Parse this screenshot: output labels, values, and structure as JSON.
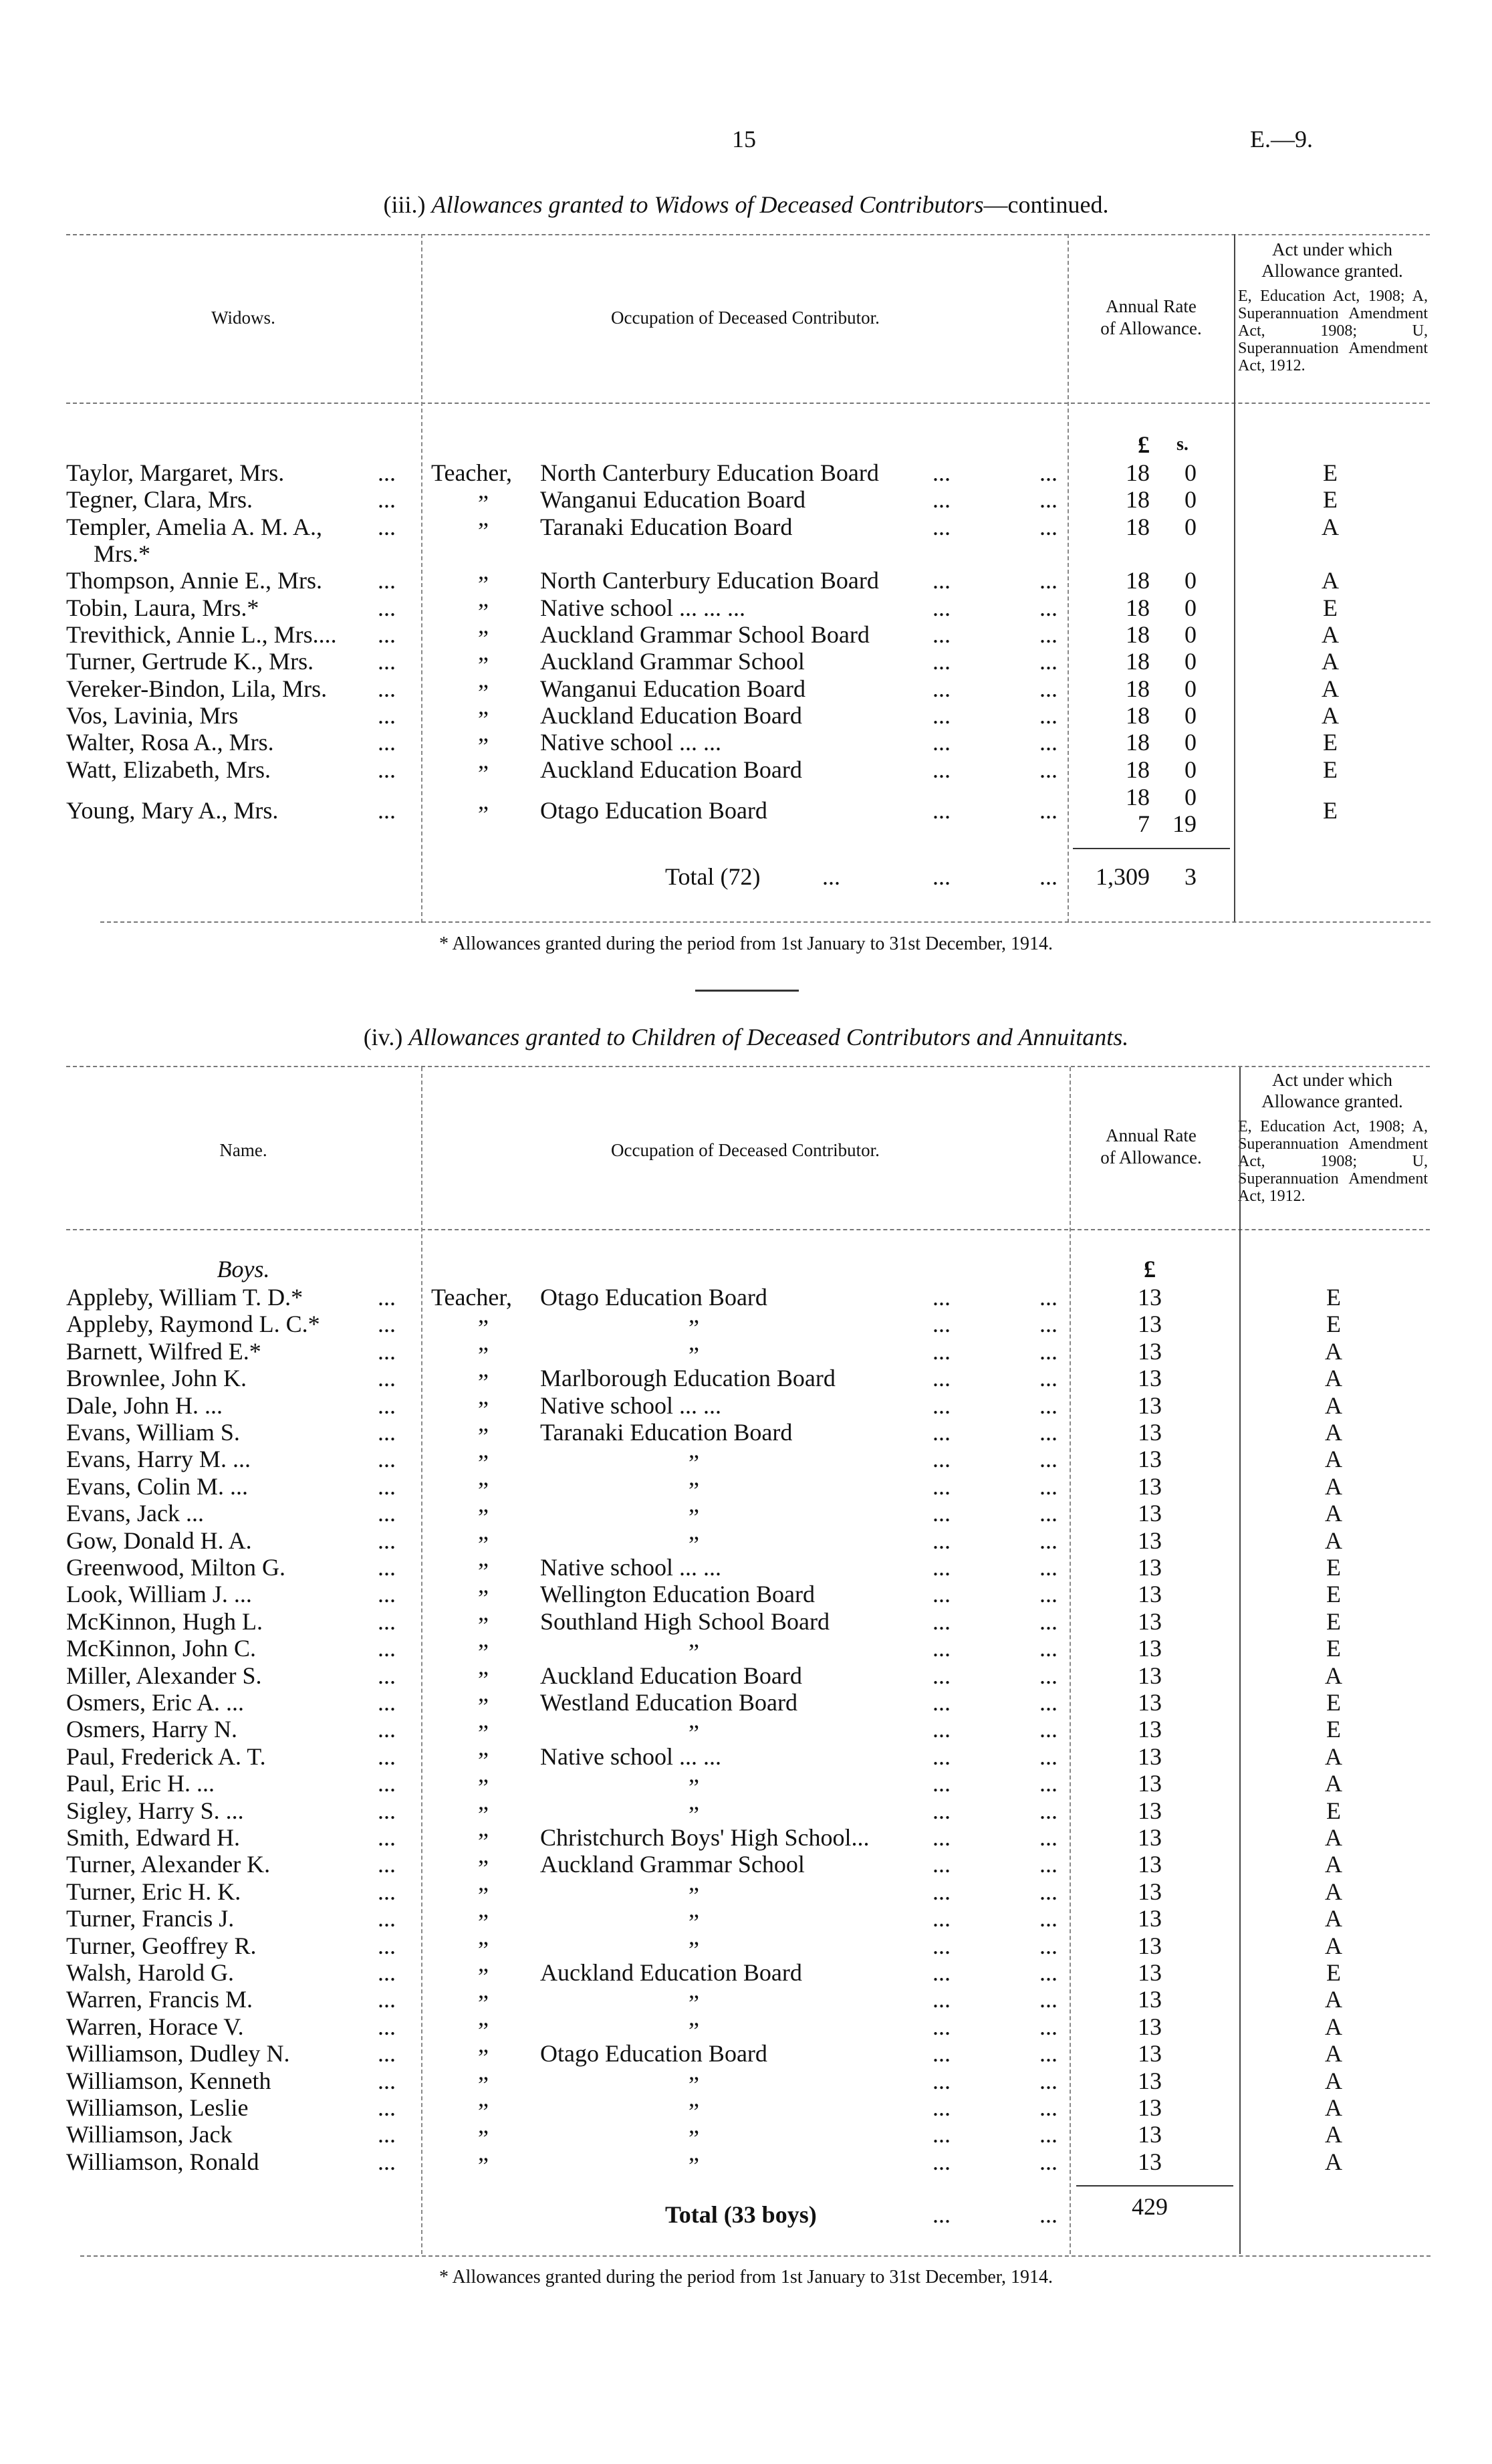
{
  "page": {
    "number": "15",
    "code": "E.—9."
  },
  "leader": "...",
  "ditto_mark": "”",
  "footnote": "* Allowances granted during the period from 1st January to 31st December, 1914.",
  "widows": {
    "title_prefix": "(iii.)",
    "title_italic": "Allowances granted to Widows of Deceased Contributors",
    "title_suffix": "—continued.",
    "headers": {
      "name": "Widows.",
      "occupation": "Occupation of Deceased Contributor.",
      "rate_1": "Annual Rate",
      "rate_2": "of Allowance.",
      "act_1": "Act under which",
      "act_2": "Allowance granted.",
      "act_detail": "E, Education Act, 1908; A, Superannuation Amendment Act, 1908; U, Superannuation Amendment Act, 1912."
    },
    "unit_pounds": "£",
    "unit_shillings": "s.",
    "rows": [
      {
        "name": "Taylor, Margaret, Mrs.",
        "prefix": "Teacher,",
        "occupation": "North Canterbury Education Board",
        "pounds": "18",
        "shillings": "0",
        "act": "E"
      },
      {
        "name": "Tegner, Clara, Mrs.",
        "prefix": "”",
        "occupation": "Wanganui Education Board",
        "pounds": "18",
        "shillings": "0",
        "act": "E"
      },
      {
        "name": "Templer, Amelia A. M. A.,",
        "name_cont": "Mrs.*",
        "prefix": "”",
        "occupation": "Taranaki Education Board",
        "pounds": "18",
        "shillings": "0",
        "act": "A"
      },
      {
        "name": "Thompson, Annie E., Mrs.",
        "prefix": "”",
        "occupation": "North Canterbury Education Board",
        "pounds": "18",
        "shillings": "0",
        "act": "A"
      },
      {
        "name": "Tobin, Laura, Mrs.*",
        "prefix": "”",
        "occupation": "Native school ...          ...          ...",
        "pounds": "18",
        "shillings": "0",
        "act": "E"
      },
      {
        "name": "Trevithick, Annie L., Mrs....",
        "prefix": "”",
        "occupation": "Auckland Grammar School Board",
        "pounds": "18",
        "shillings": "0",
        "act": "A"
      },
      {
        "name": "Turner, Gertrude K., Mrs.",
        "prefix": "”",
        "occupation": "Auckland Grammar School",
        "pounds": "18",
        "shillings": "0",
        "act": "A"
      },
      {
        "name": "Vereker-Bindon, Lila, Mrs.",
        "prefix": "”",
        "occupation": "Wanganui Education Board",
        "pounds": "18",
        "shillings": "0",
        "act": "A"
      },
      {
        "name": "Vos, Lavinia, Mrs",
        "prefix": "”",
        "occupation": "Auckland Education Board",
        "pounds": "18",
        "shillings": "0",
        "act": "A"
      },
      {
        "name": "Walter, Rosa A., Mrs.",
        "prefix": "”",
        "occupation": "Native school ...          ...",
        "pounds": "18",
        "shillings": "0",
        "act": "E"
      },
      {
        "name": "Watt, Elizabeth, Mrs.",
        "prefix": "”",
        "occupation": "Auckland Education Board",
        "pounds": "18",
        "shillings": "0",
        "act": "E"
      },
      {
        "name": "Young, Mary A., Mrs.",
        "prefix": "”",
        "occupation": "Otago Education Board",
        "pounds": "18",
        "shillings": "0",
        "pounds_2": "7",
        "shillings_2": "19",
        "act": "E"
      }
    ],
    "total_label": "Total (72)",
    "total_pounds": "1,309",
    "total_shillings": "3"
  },
  "children": {
    "title_prefix": "(iv.)",
    "title_italic": "Allowances granted to Children of Deceased Contributors and Annuitants.",
    "headers": {
      "name": "Name.",
      "occupation": "Occupation of Deceased Contributor.",
      "rate_1": "Annual Rate",
      "rate_2": "of Allowance.",
      "act_1": "Act under which",
      "act_2": "Allowance granted.",
      "act_detail": "E, Education Act, 1908; A, Superannuation Amendment Act, 1908; U, Superannuation Amendment Act, 1912."
    },
    "group_label": "Boys.",
    "unit_pounds": "£",
    "rows": [
      {
        "name": "Appleby, William T. D.*",
        "prefix": "Teacher,",
        "occupation": "Otago Education Board",
        "pounds": "13",
        "act": "E"
      },
      {
        "name": "Appleby, Raymond L. C.*",
        "prefix": "”",
        "occupation": "”",
        "ditto": true,
        "pounds": "13",
        "act": "E"
      },
      {
        "name": "Barnett, Wilfred E.*",
        "prefix": "”",
        "occupation": "”",
        "ditto": true,
        "pounds": "13",
        "act": "A"
      },
      {
        "name": "Brownlee, John K.",
        "prefix": "”",
        "occupation": "Marlborough Education Board",
        "pounds": "13",
        "act": "A"
      },
      {
        "name": "Dale, John H.   ...",
        "prefix": "”",
        "occupation": "Native school ...          ...",
        "pounds": "13",
        "act": "A"
      },
      {
        "name": "Evans, William S.",
        "prefix": "”",
        "occupation": "Taranaki Education Board",
        "pounds": "13",
        "act": "A"
      },
      {
        "name": "Evans, Harry M. ...",
        "prefix": "”",
        "occupation": "”",
        "ditto": true,
        "pounds": "13",
        "act": "A"
      },
      {
        "name": "Evans, Colin M. ...",
        "prefix": "”",
        "occupation": "”",
        "ditto": true,
        "pounds": "13",
        "act": "A"
      },
      {
        "name": "Evans, Jack   ...",
        "prefix": "”",
        "occupation": "”",
        "ditto": true,
        "pounds": "13",
        "act": "A"
      },
      {
        "name": "Gow, Donald H. A.",
        "prefix": "”",
        "occupation": "”",
        "ditto": true,
        "pounds": "13",
        "act": "A"
      },
      {
        "name": "Greenwood, Milton G.",
        "prefix": "”",
        "occupation": "Native school ...          ...",
        "pounds": "13",
        "act": "E"
      },
      {
        "name": "Look, William J. ...",
        "prefix": "”",
        "occupation": "Wellington Education Board",
        "pounds": "13",
        "act": "E"
      },
      {
        "name": "McKinnon, Hugh L.",
        "prefix": "”",
        "occupation": "Southland High School Board",
        "pounds": "13",
        "act": "E"
      },
      {
        "name": "McKinnon, John C.",
        "prefix": "”",
        "occupation": "”",
        "ditto": true,
        "pounds": "13",
        "act": "E"
      },
      {
        "name": "Miller, Alexander S.",
        "prefix": "”",
        "occupation": "Auckland Education Board",
        "pounds": "13",
        "act": "A"
      },
      {
        "name": "Osmers, Eric A. ...",
        "prefix": "”",
        "occupation": "Westland Education Board",
        "pounds": "13",
        "act": "E"
      },
      {
        "name": "Osmers, Harry N.",
        "prefix": "”",
        "occupation": "”",
        "ditto": true,
        "pounds": "13",
        "act": "E"
      },
      {
        "name": "Paul, Frederick A. T.",
        "prefix": "”",
        "occupation": "Native school ...          ...",
        "pounds": "13",
        "act": "A"
      },
      {
        "name": "Paul, Eric H.   ...",
        "prefix": "”",
        "occupation": "”",
        "ditto": true,
        "pounds": "13",
        "act": "A"
      },
      {
        "name": "Sigley, Harry S. ...",
        "prefix": "”",
        "occupation": "”",
        "ditto": true,
        "pounds": "13",
        "act": "E"
      },
      {
        "name": "Smith, Edward H.",
        "prefix": "”",
        "occupation": "Christchurch Boys' High School...",
        "pounds": "13",
        "act": "A"
      },
      {
        "name": "Turner, Alexander K.",
        "prefix": "”",
        "occupation": "Auckland Grammar School",
        "pounds": "13",
        "act": "A"
      },
      {
        "name": "Turner, Eric H. K.",
        "prefix": "”",
        "occupation": "”",
        "ditto": true,
        "pounds": "13",
        "act": "A"
      },
      {
        "name": "Turner, Francis J.",
        "prefix": "”",
        "occupation": "”",
        "ditto": true,
        "pounds": "13",
        "act": "A"
      },
      {
        "name": "Turner, Geoffrey R.",
        "prefix": "”",
        "occupation": "”",
        "ditto": true,
        "pounds": "13",
        "act": "A"
      },
      {
        "name": "Walsh, Harold G.",
        "prefix": "”",
        "occupation": "Auckland Education Board",
        "pounds": "13",
        "act": "E"
      },
      {
        "name": "Warren, Francis M.",
        "prefix": "”",
        "occupation": "”",
        "ditto": true,
        "pounds": "13",
        "act": "A"
      },
      {
        "name": "Warren, Horace V.",
        "prefix": "”",
        "occupation": "”",
        "ditto": true,
        "pounds": "13",
        "act": "A"
      },
      {
        "name": "Williamson, Dudley N.",
        "prefix": "”",
        "occupation": "Otago Education Board",
        "pounds": "13",
        "act": "A"
      },
      {
        "name": "Williamson, Kenneth",
        "prefix": "”",
        "occupation": "”",
        "ditto": true,
        "pounds": "13",
        "act": "A"
      },
      {
        "name": "Williamson, Leslie",
        "prefix": "”",
        "occupation": "”",
        "ditto": true,
        "pounds": "13",
        "act": "A"
      },
      {
        "name": "Williamson, Jack",
        "prefix": "”",
        "occupation": "”",
        "ditto": true,
        "pounds": "13",
        "act": "A"
      },
      {
        "name": "Williamson, Ronald",
        "prefix": "”",
        "occupation": "”",
        "ditto": true,
        "pounds": "13",
        "act": "A"
      }
    ],
    "total_label": "Total (33 boys)",
    "total_pounds": "429"
  }
}
